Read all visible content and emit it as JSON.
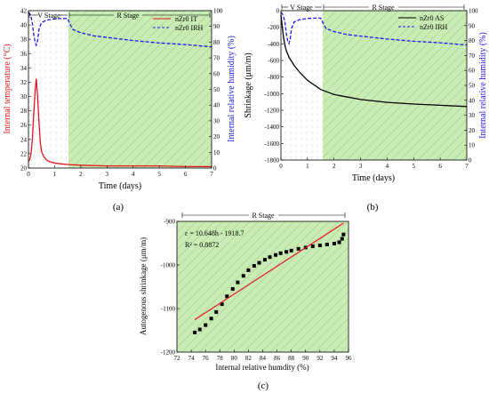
{
  "colors": {
    "red": "#e8141b",
    "blue": "#1a1aee",
    "black": "#000000",
    "shade": "#c8ecb4",
    "hatch": "#8fbf7a"
  },
  "chart_data": [
    {
      "id": "a",
      "type": "line",
      "panel_label": "(a)",
      "xlabel": "Time (days)",
      "ylabel_left": "Internal temperature (°C)",
      "ylabel_right": "Internal relative humidity (%)",
      "xlim": [
        0,
        7
      ],
      "xticks": [
        0,
        1,
        2,
        3,
        4,
        5,
        6,
        7
      ],
      "ylim_left": [
        20,
        42
      ],
      "yticks_left": [
        20,
        22,
        24,
        26,
        28,
        30,
        32,
        34,
        36,
        38,
        40,
        42
      ],
      "ylim_right": [
        0,
        100
      ],
      "yticks_right": [
        0,
        10,
        20,
        30,
        40,
        50,
        60,
        70,
        80,
        90,
        100
      ],
      "stages": [
        {
          "label": "V Stage",
          "x0": 0,
          "x1": 1.5
        },
        {
          "label": "R Stage",
          "x0": 1.5,
          "x1": 7
        }
      ],
      "shaded_region": [
        1.5,
        7
      ],
      "legend_position": "top-right",
      "series": [
        {
          "name": "nZr0 IT",
          "axis": "left",
          "style": "solid",
          "color": "red",
          "x": [
            0,
            0.05,
            0.1,
            0.15,
            0.2,
            0.25,
            0.3,
            0.35,
            0.4,
            0.45,
            0.5,
            0.6,
            0.7,
            0.8,
            1,
            1.2,
            1.5,
            2,
            3,
            4,
            5,
            6,
            7
          ],
          "y": [
            20.9,
            21.2,
            22,
            24,
            27.5,
            30.5,
            32.5,
            30,
            26.5,
            23.8,
            22.3,
            21.5,
            21.1,
            20.9,
            20.7,
            20.6,
            20.5,
            20.4,
            20.3,
            20.3,
            20.3,
            20.2,
            20.2
          ]
        },
        {
          "name": "nZr0 IRH",
          "axis": "right",
          "style": "dashed",
          "color": "blue",
          "x": [
            0,
            0.05,
            0.1,
            0.15,
            0.2,
            0.25,
            0.3,
            0.35,
            0.4,
            0.5,
            0.7,
            1,
            1.3,
            1.5,
            1.55,
            1.6,
            1.7,
            2,
            2.5,
            3,
            4,
            5,
            6,
            7
          ],
          "y": [
            99,
            98,
            96,
            92,
            85,
            80,
            78,
            81,
            88,
            92.5,
            94,
            94.8,
            95,
            95,
            93,
            91,
            88,
            86,
            84,
            83,
            81,
            79.5,
            78.5,
            77
          ]
        }
      ]
    },
    {
      "id": "b",
      "type": "line",
      "panel_label": "(b)",
      "xlabel": "Time (days)",
      "ylabel_left": "Shrinkage (μm/m)",
      "ylabel_right": "Internal relative humidity (%)",
      "xlim": [
        0,
        7
      ],
      "xticks": [
        0,
        1,
        2,
        3,
        4,
        5,
        6,
        7
      ],
      "ylim_left": [
        -1800,
        0
      ],
      "yticks_left": [
        -1800,
        -1600,
        -1400,
        -1200,
        -1000,
        -800,
        -600,
        -400,
        -200,
        0
      ],
      "ylim_right": [
        0,
        100
      ],
      "yticks_right": [
        0,
        10,
        20,
        30,
        40,
        50,
        60,
        70,
        80,
        90,
        100
      ],
      "stages": [
        {
          "label": "V Stage",
          "x0": 0,
          "x1": 1.5
        },
        {
          "label": "R Stage",
          "x0": 1.5,
          "x1": 7
        }
      ],
      "shaded_region": [
        1.5,
        7
      ],
      "legend_position": "top-right",
      "series": [
        {
          "name": "nZr0 AS",
          "axis": "left",
          "style": "solid",
          "color": "black",
          "x": [
            0,
            0.05,
            0.1,
            0.15,
            0.2,
            0.3,
            0.5,
            0.7,
            1,
            1.5,
            2,
            3,
            4,
            5,
            6,
            7
          ],
          "y": [
            -50,
            -200,
            -330,
            -420,
            -480,
            -560,
            -660,
            -740,
            -840,
            -950,
            -1010,
            -1070,
            -1105,
            -1125,
            -1140,
            -1155
          ]
        },
        {
          "name": "nZr0 IRH",
          "axis": "right",
          "style": "dashed",
          "color": "blue",
          "x": [
            0,
            0.05,
            0.1,
            0.15,
            0.2,
            0.25,
            0.3,
            0.35,
            0.4,
            0.5,
            0.7,
            1,
            1.3,
            1.5,
            1.55,
            1.6,
            1.7,
            2,
            2.5,
            3,
            4,
            5,
            6,
            7
          ],
          "y": [
            99,
            98,
            96,
            92,
            85,
            80,
            78,
            81,
            88,
            92.5,
            94,
            94.8,
            95,
            95,
            93,
            91,
            88,
            86,
            84,
            83,
            81,
            79.5,
            78.5,
            77
          ]
        }
      ]
    },
    {
      "id": "c",
      "type": "scatter",
      "panel_label": "(c)",
      "xlabel": "Internal relative humdity (%)",
      "ylabel": "Autogenous shrinkage (μm/m)",
      "xlim": [
        72,
        96
      ],
      "xticks": [
        72,
        74,
        76,
        78,
        80,
        82,
        84,
        86,
        88,
        90,
        92,
        94,
        96
      ],
      "ylim": [
        -1200,
        -900
      ],
      "yticks": [
        -1200,
        -1100,
        -1000,
        -900
      ],
      "stage": "R Stage",
      "fit_equation": "ε = 10.648h - 1918.7",
      "fit_r2": "R² = 0.8872",
      "fit_line": {
        "slope": 10.648,
        "intercept": -1918.7,
        "x0": 74.5,
        "x1": 95.3
      },
      "points": {
        "x": [
          74.5,
          75.2,
          76,
          76.8,
          77.5,
          78.3,
          79,
          79.8,
          80.5,
          81.3,
          82,
          82.8,
          83.5,
          84.3,
          85,
          85.8,
          86.5,
          87.3,
          88,
          89,
          90,
          91,
          92,
          93,
          94,
          94.7,
          95.1,
          95.3
        ],
        "y": [
          -1155,
          -1148,
          -1138,
          -1123,
          -1108,
          -1090,
          -1072,
          -1055,
          -1040,
          -1025,
          -1012,
          -1002,
          -995,
          -988,
          -982,
          -977,
          -973,
          -970,
          -967,
          -963,
          -960,
          -957,
          -955,
          -953,
          -951,
          -948,
          -940,
          -930
        ]
      }
    }
  ]
}
